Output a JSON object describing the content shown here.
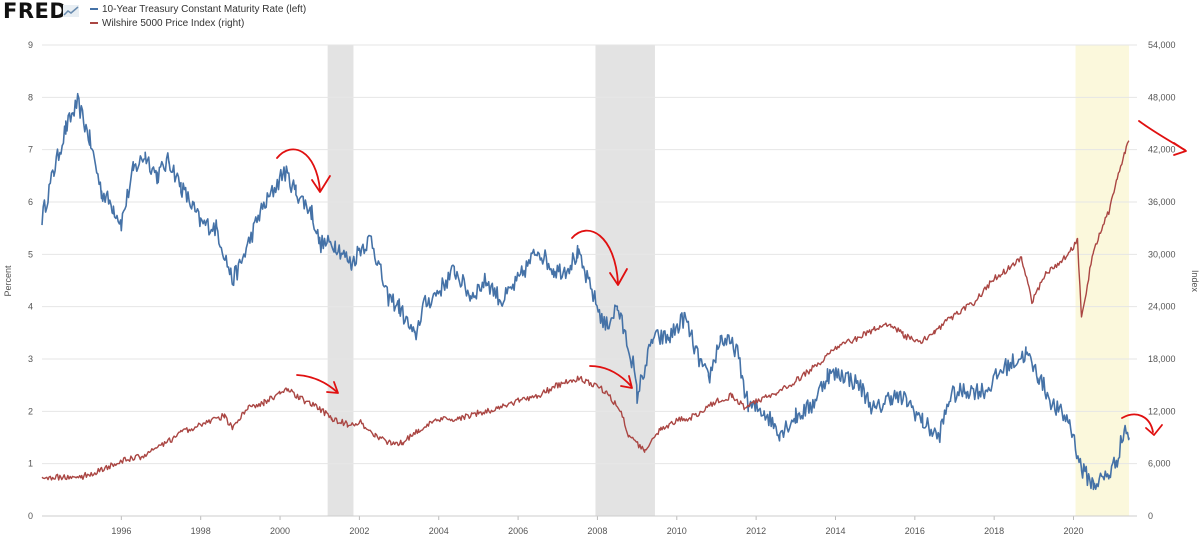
{
  "branding": {
    "logo_text": "FRED"
  },
  "chart_data": {
    "type": "line",
    "legend_position": "top-left",
    "grid": true,
    "x": {
      "range": [
        1994.0,
        2021.6
      ],
      "tick_labels": [
        "1996",
        "1998",
        "2000",
        "2002",
        "2004",
        "2006",
        "2008",
        "2010",
        "2012",
        "2014",
        "2016",
        "2018",
        "2020"
      ]
    },
    "y_left": {
      "label": "Percent",
      "range": [
        0,
        9
      ],
      "ticks": [
        "0",
        "1",
        "2",
        "3",
        "4",
        "5",
        "6",
        "7",
        "8",
        "9"
      ]
    },
    "y_right": {
      "label": "Index",
      "range": [
        0,
        54000
      ],
      "ticks": [
        "0",
        "6,000",
        "12,000",
        "18,000",
        "24,000",
        "30,000",
        "36,000",
        "42,000",
        "48,000",
        "54,000"
      ]
    },
    "recessions": [
      {
        "start": 2001.2,
        "end": 2001.85
      },
      {
        "start": 2007.95,
        "end": 2009.45
      }
    ],
    "highlight": {
      "start": 2020.05,
      "end": 2021.4,
      "color": "#fbf8dc"
    },
    "series": [
      {
        "name": "10-Year Treasury Constant Maturity Rate (left)",
        "axis": "left",
        "color": "#4572a7",
        "x": [
          1994.0,
          1994.3,
          1994.6,
          1994.9,
          1995.2,
          1995.5,
          1995.8,
          1996.0,
          1996.3,
          1996.6,
          1996.9,
          1997.2,
          1997.5,
          1997.8,
          1998.0,
          1998.4,
          1998.8,
          1999.0,
          1999.5,
          1999.9,
          2000.1,
          2000.4,
          2000.8,
          2001.0,
          2001.4,
          2001.8,
          2002.0,
          2002.3,
          2002.7,
          2003.0,
          2003.4,
          2003.6,
          2004.0,
          2004.4,
          2004.8,
          2005.2,
          2005.6,
          2006.0,
          2006.5,
          2006.9,
          2007.2,
          2007.5,
          2007.9,
          2008.2,
          2008.5,
          2008.9,
          2009.0,
          2009.4,
          2009.8,
          2010.2,
          2010.5,
          2010.8,
          2011.1,
          2011.5,
          2011.8,
          2012.2,
          2012.6,
          2013.0,
          2013.4,
          2013.8,
          2014.2,
          2014.6,
          2015.0,
          2015.4,
          2015.8,
          2016.2,
          2016.6,
          2016.9,
          2017.3,
          2017.8,
          2018.2,
          2018.8,
          2019.1,
          2019.5,
          2019.9,
          2020.2,
          2020.5,
          2020.9,
          2021.1,
          2021.3,
          2021.4
        ],
        "values": [
          5.7,
          6.6,
          7.4,
          7.9,
          7.2,
          6.2,
          5.9,
          5.6,
          6.6,
          6.9,
          6.5,
          6.8,
          6.3,
          5.9,
          5.6,
          5.5,
          4.5,
          4.8,
          5.8,
          6.3,
          6.6,
          6.2,
          5.8,
          5.2,
          5.2,
          4.8,
          5.1,
          5.3,
          4.2,
          4.0,
          3.4,
          4.0,
          4.3,
          4.7,
          4.2,
          4.5,
          4.1,
          4.5,
          5.1,
          4.7,
          4.7,
          5.0,
          4.2,
          3.6,
          4.0,
          2.9,
          2.3,
          3.4,
          3.4,
          3.8,
          3.1,
          2.6,
          3.4,
          3.2,
          2.1,
          2.0,
          1.6,
          1.9,
          2.1,
          2.7,
          2.7,
          2.5,
          2.0,
          2.3,
          2.2,
          1.8,
          1.5,
          2.3,
          2.4,
          2.4,
          2.8,
          3.1,
          2.7,
          2.1,
          1.8,
          0.9,
          0.6,
          0.8,
          1.1,
          1.7,
          1.5
        ]
      },
      {
        "name": "Wilshire 5000 Price Index (right)",
        "axis": "right",
        "color": "#aa4643",
        "x": [
          1994.0,
          1994.5,
          1995.0,
          1995.5,
          1996.0,
          1996.5,
          1997.0,
          1997.5,
          1998.0,
          1998.6,
          1998.8,
          1999.2,
          1999.6,
          2000.0,
          2000.2,
          2000.5,
          2000.8,
          2001.0,
          2001.3,
          2001.7,
          2002.0,
          2002.4,
          2002.8,
          2003.1,
          2003.5,
          2004.0,
          2004.5,
          2005.0,
          2005.5,
          2006.0,
          2006.5,
          2007.0,
          2007.5,
          2007.8,
          2008.2,
          2008.6,
          2008.8,
          2009.2,
          2009.6,
          2010.0,
          2010.5,
          2011.0,
          2011.4,
          2011.7,
          2012.0,
          2012.5,
          2013.0,
          2013.5,
          2014.0,
          2014.5,
          2015.0,
          2015.4,
          2015.7,
          2016.1,
          2016.5,
          2017.0,
          2017.5,
          2018.0,
          2018.7,
          2018.95,
          2019.3,
          2019.7,
          2020.1,
          2020.2,
          2020.5,
          2020.9,
          2021.1,
          2021.3,
          2021.4
        ],
        "values": [
          4500,
          4400,
          4500,
          5300,
          6300,
          6800,
          8000,
          9500,
          10500,
          11500,
          10000,
          12500,
          13000,
          14000,
          14500,
          13500,
          12800,
          12300,
          11200,
          10500,
          10800,
          9300,
          8300,
          8500,
          9900,
          11000,
          11200,
          11800,
          12300,
          13200,
          13800,
          15000,
          15800,
          15300,
          14300,
          12000,
          9000,
          7500,
          10000,
          10900,
          11500,
          13200,
          13800,
          12500,
          13200,
          14000,
          15500,
          17200,
          19200,
          20300,
          21500,
          22000,
          20800,
          19800,
          21200,
          23000,
          24500,
          27200,
          29500,
          24500,
          27800,
          29200,
          31500,
          22500,
          30500,
          35000,
          38800,
          41800,
          43000
        ]
      }
    ],
    "annotations": [
      {
        "type": "curved-arrow",
        "note": "peak 2000 treasury"
      },
      {
        "type": "curved-arrow",
        "note": "peak 2000 wilshire"
      },
      {
        "type": "curved-arrow",
        "note": "peak 2007 treasury"
      },
      {
        "type": "curved-arrow",
        "note": "peak 2008 wilshire"
      },
      {
        "type": "curved-arrow",
        "note": "2021 wilshire"
      },
      {
        "type": "curved-arrow",
        "note": "2021 treasury"
      }
    ]
  }
}
